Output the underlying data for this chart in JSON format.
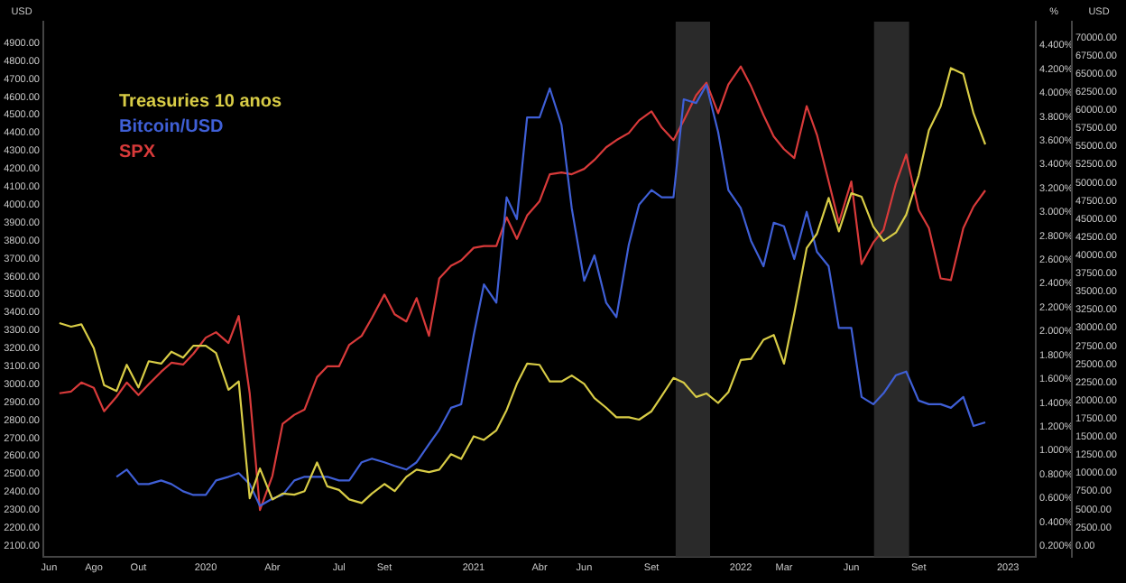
{
  "chart_data": {
    "type": "line",
    "ylabel": "USD",
    "y2label": "%",
    "y3label": "USD",
    "legend": "top left",
    "marker": "none",
    "line_style": "solid",
    "grid": false,
    "x": [
      "2019-06-15",
      "2019-07-01",
      "2019-07-15",
      "2019-08-01",
      "2019-08-15",
      "2019-09-01",
      "2019-09-15",
      "2019-10-01",
      "2019-10-15",
      "2019-11-01",
      "2019-11-15",
      "2019-12-01",
      "2019-12-15",
      "2020-01-01",
      "2020-01-15",
      "2020-02-01",
      "2020-02-15",
      "2020-03-01",
      "2020-03-15",
      "2020-04-01",
      "2020-04-15",
      "2020-05-01",
      "2020-05-15",
      "2020-06-01",
      "2020-06-15",
      "2020-07-01",
      "2020-07-15",
      "2020-08-01",
      "2020-08-15",
      "2020-09-01",
      "2020-09-15",
      "2020-10-01",
      "2020-10-15",
      "2020-11-01",
      "2020-11-15",
      "2020-12-01",
      "2020-12-15",
      "2021-01-01",
      "2021-01-15",
      "2021-02-01",
      "2021-02-15",
      "2021-03-01",
      "2021-03-15",
      "2021-04-01",
      "2021-04-15",
      "2021-05-01",
      "2021-05-15",
      "2021-06-01",
      "2021-06-15",
      "2021-07-01",
      "2021-07-15",
      "2021-08-01",
      "2021-08-15",
      "2021-09-01",
      "2021-09-15",
      "2021-10-01",
      "2021-10-15",
      "2021-11-01",
      "2021-11-15",
      "2021-12-01",
      "2021-12-15",
      "2022-01-01",
      "2022-01-15",
      "2022-02-01",
      "2022-02-15",
      "2022-03-01",
      "2022-03-15",
      "2022-04-01",
      "2022-04-15",
      "2022-05-01",
      "2022-05-15",
      "2022-06-01",
      "2022-06-15",
      "2022-07-01",
      "2022-07-15",
      "2022-08-01",
      "2022-08-15",
      "2022-09-01",
      "2022-09-15",
      "2022-10-01",
      "2022-10-15",
      "2022-11-01",
      "2022-11-15",
      "2022-12-01"
    ],
    "series": [
      {
        "name": "Treasuries 10 anos",
        "color": "#d8cc46",
        "axis": "y2",
        "values": [
          2.07,
          2.04,
          2.06,
          1.86,
          1.55,
          1.5,
          1.72,
          1.53,
          1.75,
          1.73,
          1.83,
          1.78,
          1.88,
          1.88,
          1.82,
          1.51,
          1.58,
          0.6,
          0.85,
          0.59,
          0.64,
          0.63,
          0.66,
          0.9,
          0.7,
          0.67,
          0.59,
          0.56,
          0.64,
          0.72,
          0.66,
          0.78,
          0.84,
          0.82,
          0.84,
          0.97,
          0.93,
          1.12,
          1.09,
          1.17,
          1.34,
          1.56,
          1.73,
          1.72,
          1.58,
          1.58,
          1.63,
          1.56,
          1.44,
          1.36,
          1.28,
          1.28,
          1.26,
          1.33,
          1.46,
          1.61,
          1.57,
          1.45,
          1.48,
          1.4,
          1.49,
          1.76,
          1.77,
          1.93,
          1.97,
          1.73,
          2.15,
          2.7,
          2.82,
          3.12,
          2.84,
          3.16,
          3.13,
          2.88,
          2.76,
          2.83,
          2.98,
          3.31,
          3.69,
          3.89,
          4.21,
          4.16,
          3.83,
          3.57
        ]
      },
      {
        "name": "Bitcoin/USD",
        "color": "#3f5fd6",
        "axis": "y3",
        "values": [
          null,
          null,
          null,
          null,
          null,
          9500,
          10500,
          8500,
          8500,
          9000,
          8500,
          7500,
          7000,
          7000,
          9000,
          9500,
          10000,
          8500,
          5500,
          6500,
          7000,
          9000,
          9500,
          9500,
          9500,
          9000,
          9000,
          11500,
          12000,
          11500,
          11000,
          10500,
          11500,
          14000,
          16000,
          19000,
          19500,
          29000,
          36000,
          33500,
          48000,
          45000,
          59000,
          59000,
          63000,
          58000,
          46500,
          36500,
          40000,
          33500,
          31500,
          41500,
          47000,
          49000,
          48000,
          48000,
          61500,
          61000,
          63500,
          57000,
          49000,
          46500,
          42000,
          38500,
          44500,
          44000,
          39500,
          46000,
          40500,
          38500,
          30000,
          30000,
          20500,
          19500,
          21000,
          23500,
          24000,
          20000,
          19500,
          19500,
          19000,
          20500,
          16500,
          17000
        ]
      },
      {
        "name": "SPX",
        "color": "#d83a3a",
        "axis": "y",
        "values": [
          2950,
          2960,
          3010,
          2980,
          2850,
          2930,
          3010,
          2940,
          3000,
          3070,
          3120,
          3110,
          3170,
          3260,
          3290,
          3230,
          3380,
          2950,
          2300,
          2490,
          2780,
          2830,
          2860,
          3040,
          3100,
          3100,
          3220,
          3270,
          3370,
          3500,
          3390,
          3350,
          3480,
          3270,
          3590,
          3660,
          3690,
          3760,
          3770,
          3770,
          3930,
          3810,
          3940,
          4020,
          4170,
          4180,
          4170,
          4200,
          4250,
          4320,
          4360,
          4400,
          4470,
          4520,
          4430,
          4360,
          4470,
          4610,
          4680,
          4510,
          4670,
          4770,
          4660,
          4500,
          4380,
          4310,
          4260,
          4550,
          4390,
          4130,
          3900,
          4130,
          3670,
          3790,
          3860,
          4120,
          4280,
          3970,
          3870,
          3590,
          3580,
          3870,
          3990,
          4080
        ]
      }
    ],
    "xlim": [
      "2019-05-24",
      "2023-02-08"
    ],
    "xticks": [
      {
        "value": "2019-06-01",
        "label": "Jun"
      },
      {
        "value": "2019-08-01",
        "label": "Ago"
      },
      {
        "value": "2019-10-01",
        "label": "Out"
      },
      {
        "value": "2020-01-01",
        "label": "2020"
      },
      {
        "value": "2020-04-01",
        "label": "Abr"
      },
      {
        "value": "2020-07-01",
        "label": "Jul"
      },
      {
        "value": "2020-09-01",
        "label": "Set"
      },
      {
        "value": "2021-01-01",
        "label": "2021"
      },
      {
        "value": "2021-04-01",
        "label": "Abr"
      },
      {
        "value": "2021-06-01",
        "label": "Jun"
      },
      {
        "value": "2021-09-01",
        "label": "Set"
      },
      {
        "value": "2022-01-01",
        "label": "2022"
      },
      {
        "value": "2022-03-01",
        "label": "Mar"
      },
      {
        "value": "2022-06-01",
        "label": "Jun"
      },
      {
        "value": "2022-09-01",
        "label": "Set"
      },
      {
        "value": "2023-01-01",
        "label": "2023"
      }
    ],
    "ylim": [
      2040,
      5020
    ],
    "yticks": [
      {
        "value": 2100,
        "label": "2100.00"
      },
      {
        "value": 2200,
        "label": "2200.00"
      },
      {
        "value": 2300,
        "label": "2300.00"
      },
      {
        "value": 2400,
        "label": "2400.00"
      },
      {
        "value": 2500,
        "label": "2500.00"
      },
      {
        "value": 2600,
        "label": "2600.00"
      },
      {
        "value": 2700,
        "label": "2700.00"
      },
      {
        "value": 2800,
        "label": "2800.00"
      },
      {
        "value": 2900,
        "label": "2900.00"
      },
      {
        "value": 3000,
        "label": "3000.00"
      },
      {
        "value": 3100,
        "label": "3100.00"
      },
      {
        "value": 3200,
        "label": "3200.00"
      },
      {
        "value": 3300,
        "label": "3300.00"
      },
      {
        "value": 3400,
        "label": "3400.00"
      },
      {
        "value": 3500,
        "label": "3500.00"
      },
      {
        "value": 3600,
        "label": "3600.00"
      },
      {
        "value": 3700,
        "label": "3700.00"
      },
      {
        "value": 3800,
        "label": "3800.00"
      },
      {
        "value": 3900,
        "label": "3900.00"
      },
      {
        "value": 4000,
        "label": "4000.00"
      },
      {
        "value": 4100,
        "label": "4100.00"
      },
      {
        "value": 4200,
        "label": "4200.00"
      },
      {
        "value": 4300,
        "label": "4300.00"
      },
      {
        "value": 4400,
        "label": "4400.00"
      },
      {
        "value": 4500,
        "label": "4500.00"
      },
      {
        "value": 4600,
        "label": "4600.00"
      },
      {
        "value": 4700,
        "label": "4700.00"
      },
      {
        "value": 4800,
        "label": "4800.00"
      },
      {
        "value": 4900,
        "label": "4900.00"
      }
    ],
    "y2lim": [
      0.11,
      4.6
    ],
    "y2ticks": [
      {
        "value": 0.2,
        "label": "0.200%"
      },
      {
        "value": 0.4,
        "label": "0.400%"
      },
      {
        "value": 0.6,
        "label": "0.600%"
      },
      {
        "value": 0.8,
        "label": "0.800%"
      },
      {
        "value": 1,
        "label": "1.000%"
      },
      {
        "value": 1.2,
        "label": "1.200%"
      },
      {
        "value": 1.4,
        "label": "1.400%"
      },
      {
        "value": 1.6,
        "label": "1.600%"
      },
      {
        "value": 1.8,
        "label": "1.800%"
      },
      {
        "value": 2,
        "label": "2.000%"
      },
      {
        "value": 2.2,
        "label": "2.200%"
      },
      {
        "value": 2.4,
        "label": "2.400%"
      },
      {
        "value": 2.6,
        "label": "2.600%"
      },
      {
        "value": 2.8,
        "label": "2.800%"
      },
      {
        "value": 3,
        "label": "3.000%"
      },
      {
        "value": 3.2,
        "label": "3.200%"
      },
      {
        "value": 3.4,
        "label": "3.400%"
      },
      {
        "value": 3.6,
        "label": "3.600%"
      },
      {
        "value": 3.8,
        "label": "3.800%"
      },
      {
        "value": 4,
        "label": "4.000%"
      },
      {
        "value": 4.2,
        "label": "4.200%"
      },
      {
        "value": 4.4,
        "label": "4.400%"
      }
    ],
    "y3lim": [
      -1500,
      72200
    ],
    "y3ticks": [
      {
        "value": 0,
        "label": "0.00"
      },
      {
        "value": 2500,
        "label": "2500.00"
      },
      {
        "value": 5000,
        "label": "5000.00"
      },
      {
        "value": 7500,
        "label": "7500.00"
      },
      {
        "value": 10000,
        "label": "10000.00"
      },
      {
        "value": 12500,
        "label": "12500.00"
      },
      {
        "value": 15000,
        "label": "15000.00"
      },
      {
        "value": 17500,
        "label": "17500.00"
      },
      {
        "value": 20000,
        "label": "20000.00"
      },
      {
        "value": 22500,
        "label": "22500.00"
      },
      {
        "value": 25000,
        "label": "25000.00"
      },
      {
        "value": 27500,
        "label": "27500.00"
      },
      {
        "value": 30000,
        "label": "30000.00"
      },
      {
        "value": 32500,
        "label": "32500.00"
      },
      {
        "value": 35000,
        "label": "35000.00"
      },
      {
        "value": 37500,
        "label": "37500.00"
      },
      {
        "value": 40000,
        "label": "40000.00"
      },
      {
        "value": 42500,
        "label": "42500.00"
      },
      {
        "value": 45000,
        "label": "45000.00"
      },
      {
        "value": 47500,
        "label": "47500.00"
      },
      {
        "value": 50000,
        "label": "50000.00"
      },
      {
        "value": 52500,
        "label": "52500.00"
      },
      {
        "value": 55000,
        "label": "55000.00"
      },
      {
        "value": 57500,
        "label": "57500.00"
      },
      {
        "value": 60000,
        "label": "60000.00"
      },
      {
        "value": 62500,
        "label": "62500.00"
      },
      {
        "value": 65000,
        "label": "65000.00"
      },
      {
        "value": 67500,
        "label": "67500.00"
      },
      {
        "value": 70000,
        "label": "70000.00"
      }
    ],
    "bands": [
      {
        "axis": "x",
        "from": "2021-10-04",
        "to": "2021-11-20",
        "color": "#2a2a2a"
      },
      {
        "axis": "x",
        "from": "2022-07-02",
        "to": "2022-08-19",
        "color": "#2a2a2a"
      }
    ]
  }
}
